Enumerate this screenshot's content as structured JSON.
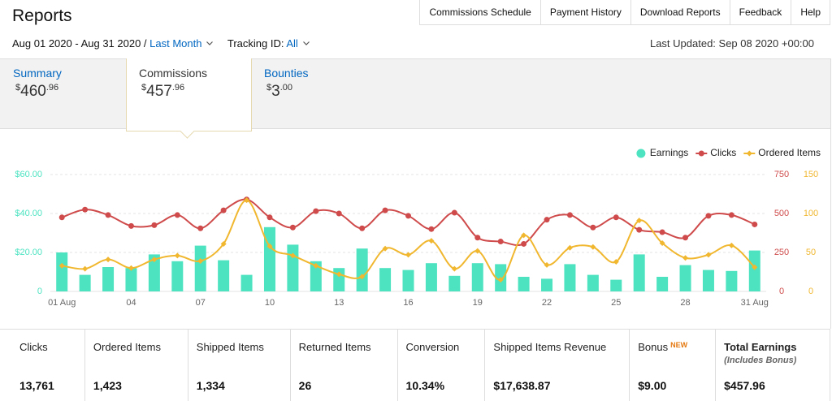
{
  "header": {
    "title": "Reports",
    "nav": [
      "Commissions Schedule",
      "Payment History",
      "Download Reports",
      "Feedback",
      "Help"
    ]
  },
  "filters": {
    "date_range": "Aug 01 2020 - Aug 31 2020 /",
    "period": "Last Month",
    "tracking_label": "Tracking ID:",
    "tracking_value": "All",
    "last_updated": "Last Updated: Sep 08 2020 +00:00"
  },
  "tabs": [
    {
      "label": "Summary",
      "currency": "$",
      "whole": "460",
      "cents": ".96"
    },
    {
      "label": "Commissions",
      "currency": "$",
      "whole": "457",
      "cents": ".96"
    },
    {
      "label": "Bounties",
      "currency": "$",
      "whole": "3",
      "cents": ".00"
    }
  ],
  "chart_data": {
    "type": "combo",
    "categories": [
      "01 Aug",
      null,
      null,
      "04",
      null,
      null,
      "07",
      null,
      null,
      "10",
      null,
      null,
      "13",
      null,
      null,
      "16",
      null,
      null,
      "19",
      null,
      null,
      "22",
      null,
      null,
      "25",
      null,
      null,
      "28",
      null,
      null,
      "31 Aug"
    ],
    "series": [
      {
        "name": "Earnings",
        "type": "bar",
        "color": "#4de3c1",
        "axis": "y",
        "values": [
          20,
          8.5,
          12.5,
          12,
          19,
          15.5,
          23.5,
          16,
          8.5,
          33,
          24,
          15.5,
          12,
          22,
          12,
          11,
          14.5,
          8,
          14.5,
          14,
          7.5,
          6.5,
          14,
          8.5,
          6,
          19,
          7.5,
          13.5,
          11,
          10.5,
          21
        ]
      },
      {
        "name": "Clicks",
        "type": "line",
        "marker": "circle",
        "color": "#cf4b4b",
        "axis": "y2",
        "values": [
          475,
          525,
          490,
          420,
          425,
          490,
          405,
          520,
          590,
          475,
          410,
          515,
          500,
          405,
          520,
          485,
          400,
          505,
          345,
          320,
          305,
          460,
          490,
          410,
          475,
          395,
          380,
          345,
          485,
          490,
          430
        ]
      },
      {
        "name": "Ordered Items",
        "type": "line",
        "marker": "diamond",
        "color": "#f0b72f",
        "axis": "y3",
        "values": [
          33,
          29,
          41,
          30,
          41,
          46,
          39,
          61,
          117,
          58,
          46,
          33,
          22,
          19,
          55,
          47,
          65,
          29,
          52,
          15,
          72,
          34,
          56,
          57,
          38,
          91,
          62,
          43,
          47,
          59,
          31
        ]
      }
    ],
    "ylim": [
      0,
      60
    ],
    "yticks": [
      0,
      {
        "value": 20,
        "label": "$20.00"
      },
      {
        "value": 40,
        "label": "$40.00"
      },
      {
        "value": 60,
        "label": "$60.00"
      }
    ],
    "y2lim": [
      0,
      750
    ],
    "y2ticks": [
      0,
      250,
      500,
      750
    ],
    "y3lim": [
      0,
      150
    ],
    "y3ticks": [
      0,
      50,
      100,
      150
    ],
    "grid": true,
    "legend": "top-right"
  },
  "stats": [
    {
      "label": "Clicks",
      "value": "13,761"
    },
    {
      "label": "Ordered Items",
      "value": "1,423"
    },
    {
      "label": "Shipped Items",
      "value": "1,334"
    },
    {
      "label": "Returned Items",
      "value": "26"
    },
    {
      "label": "Conversion",
      "value": "10.34%"
    },
    {
      "label": "Shipped Items Revenue",
      "value": "$17,638.87"
    },
    {
      "label": "Bonus",
      "badge": "NEW",
      "value": "$9.00"
    },
    {
      "label": "Total Earnings",
      "note": "(Includes Bonus)",
      "value": "$457.96"
    }
  ]
}
